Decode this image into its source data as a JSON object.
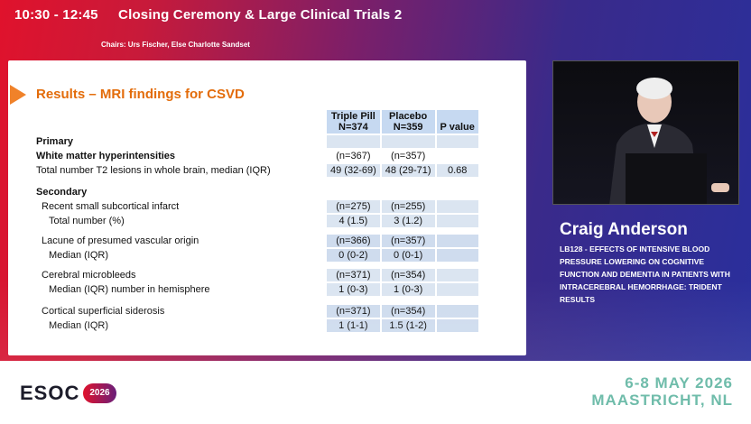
{
  "session": {
    "time": "10:30 - 12:45",
    "title": "Closing Ceremony & Large Clinical Trials 2",
    "chairs": "Chairs: Urs Fischer, Else Charlotte Sandset"
  },
  "slide": {
    "title": "Results – MRI findings for CSVD",
    "headers": [
      "Triple Pill\nN=374",
      "Placebo\nN=359",
      "P value"
    ],
    "header_triple": "Triple Pill",
    "header_triple_n": "N=374",
    "header_placebo": "Placebo",
    "header_placebo_n": "N=359",
    "header_p": "P value",
    "rows": [
      {
        "label": "Primary",
        "a": "",
        "b": "",
        "p": ""
      },
      {
        "label": "White matter hyperintensities",
        "a": "(n=367)",
        "b": "(n=357)",
        "p": ""
      },
      {
        "label": "Total number T2 lesions in whole brain, median (IQR)",
        "a": "49 (32-69)",
        "b": "48 (29-71)",
        "p": "0.68"
      },
      {
        "label": "Secondary",
        "a": "",
        "b": "",
        "p": ""
      },
      {
        "label": "Recent small subcortical infarct",
        "a": "(n=275)",
        "b": "(n=255)",
        "p": ""
      },
      {
        "label": "Total number (%)",
        "a": "4 (1.5)",
        "b": "3 (1.2)",
        "p": ""
      },
      {
        "label": "Lacune of presumed vascular origin",
        "a": "(n=366)",
        "b": "(n=357)",
        "p": ""
      },
      {
        "label": "Median (IQR)",
        "a": "0 (0-2)",
        "b": "0 (0-1)",
        "p": ""
      },
      {
        "label": "Cerebral microbleeds",
        "a": "(n=371)",
        "b": "(n=354)",
        "p": ""
      },
      {
        "label": "Median (IQR) number in hemisphere",
        "a": "1 (0-3)",
        "b": "1 (0-3)",
        "p": ""
      },
      {
        "label": "Cortical superficial siderosis",
        "a": "(n=371)",
        "b": "(n=354)",
        "p": ""
      },
      {
        "label": "Median (IQR)",
        "a": "1 (1-1)",
        "b": "1.5 (1-2)",
        "p": ""
      }
    ]
  },
  "speaker": {
    "name": "Craig Anderson",
    "talk": "LB128 - EFFECTS OF INTENSIVE BLOOD PRESSURE LOWERING ON COGNITIVE FUNCTION AND DEMENTIA IN PATIENTS WITH INTRACEREBRAL HEMORRHAGE: TRIDENT RESULTS"
  },
  "footer": {
    "logo": "ESOC",
    "year": "2026",
    "dates": "6-8 MAY 2026",
    "location": "MAASTRICHT, NL"
  },
  "colors": {
    "accent": "#e36c0a",
    "header_blue": "#c6d9f1",
    "dates_teal": "#6fbcaa"
  }
}
